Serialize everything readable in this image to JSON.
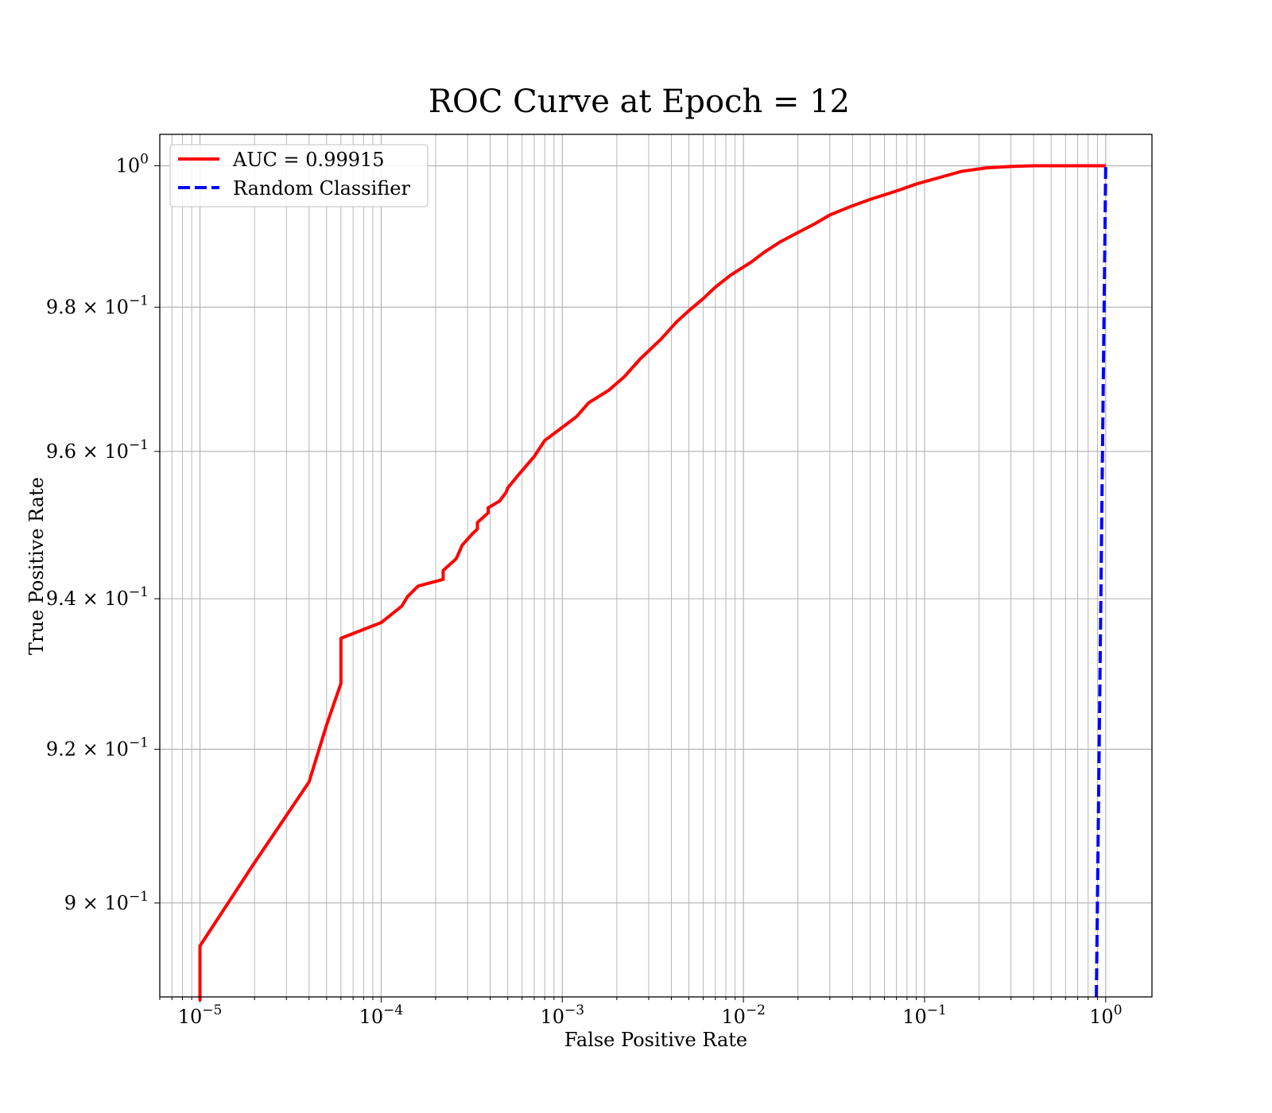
{
  "chart_data": {
    "type": "line",
    "title": "ROC Curve at Epoch = 12",
    "xlabel": "False Positive Rate",
    "ylabel": "True Positive Rate",
    "x_scale": "log",
    "y_scale": "log",
    "xlim": [
      6e-06,
      1.8
    ],
    "ylim": [
      0.888,
      1.0045
    ],
    "grid": "on",
    "legend_position": "upper-left",
    "x_ticks": [
      {
        "value": 1e-05,
        "base": "10",
        "exp": "−5"
      },
      {
        "value": 0.0001,
        "base": "10",
        "exp": "−4"
      },
      {
        "value": 0.001,
        "base": "10",
        "exp": "−3"
      },
      {
        "value": 0.01,
        "base": "10",
        "exp": "−2"
      },
      {
        "value": 0.1,
        "base": "10",
        "exp": "−1"
      },
      {
        "value": 1,
        "base": "10",
        "exp": "0"
      }
    ],
    "y_ticks": [
      {
        "value": 0.9,
        "base": "9 × 10",
        "exp": "−1"
      },
      {
        "value": 0.92,
        "base": "9.2 × 10",
        "exp": "−1"
      },
      {
        "value": 0.94,
        "base": "9.4 × 10",
        "exp": "−1"
      },
      {
        "value": 0.96,
        "base": "9.6 × 10",
        "exp": "−1"
      },
      {
        "value": 0.98,
        "base": "9.8 × 10",
        "exp": "−1"
      },
      {
        "value": 1.0,
        "base": "10",
        "exp": "0"
      }
    ],
    "series": [
      {
        "name": "AUC = 0.99915",
        "color": "#ff0000",
        "style": "solid",
        "x": [
          1e-05,
          1e-05,
          2e-05,
          4e-05,
          5e-05,
          6e-05,
          6e-05,
          0.0001,
          0.00013,
          0.00014,
          0.00016,
          0.00022,
          0.00022,
          0.00026,
          0.00028,
          0.00032,
          0.00034,
          0.00034,
          0.00039,
          0.00039,
          0.00045,
          0.00049,
          0.0005,
          0.00056,
          0.0007,
          0.0008,
          0.001,
          0.0012,
          0.0014,
          0.0018,
          0.0022,
          0.0027,
          0.0035,
          0.0043,
          0.005,
          0.006,
          0.007,
          0.0085,
          0.011,
          0.013,
          0.016,
          0.02,
          0.025,
          0.03,
          0.04,
          0.05,
          0.07,
          0.09,
          0.12,
          0.16,
          0.22,
          0.3,
          0.4,
          0.6,
          1.0
        ],
        "y": [
          0.8875,
          0.8945,
          0.9052,
          0.9157,
          0.9232,
          0.9287,
          0.9347,
          0.9368,
          0.939,
          0.9403,
          0.9417,
          0.9426,
          0.9438,
          0.9454,
          0.9472,
          0.9488,
          0.9494,
          0.9503,
          0.9516,
          0.9523,
          0.9532,
          0.9544,
          0.955,
          0.9565,
          0.9593,
          0.9615,
          0.9633,
          0.9648,
          0.9667,
          0.9684,
          0.9703,
          0.9728,
          0.9755,
          0.978,
          0.9795,
          0.9812,
          0.9828,
          0.9845,
          0.9863,
          0.9877,
          0.9892,
          0.9905,
          0.9918,
          0.993,
          0.9943,
          0.9952,
          0.9964,
          0.9974,
          0.9983,
          0.9992,
          0.9997,
          0.9999,
          1.0,
          1.0,
          1.0
        ]
      },
      {
        "name": "Random Classifier",
        "color": "#0000ff",
        "style": "dashed",
        "x": [
          0.888,
          1.0
        ],
        "y": [
          0.888,
          1.0
        ]
      }
    ]
  }
}
